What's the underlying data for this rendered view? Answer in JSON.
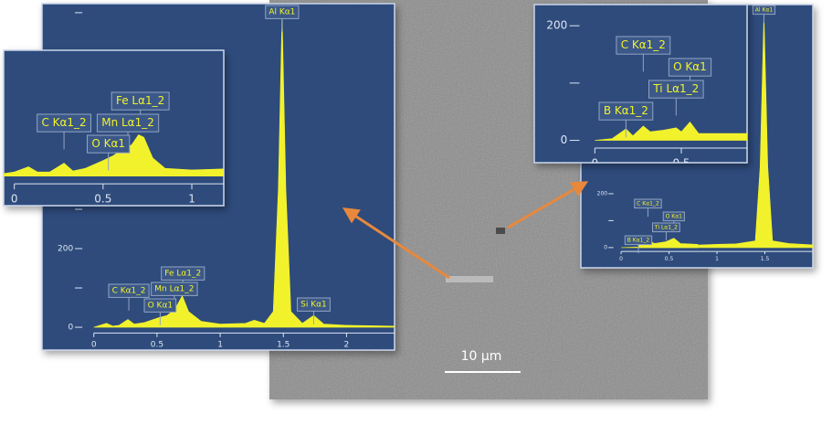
{
  "scale_bar": "10 µm",
  "chart_data": [
    {
      "type": "area",
      "color": "#f2f22c",
      "x": [
        0,
        0.1,
        0.15,
        0.2,
        0.27,
        0.32,
        0.4,
        0.52,
        0.58,
        0.64,
        0.7,
        0.75,
        0.85,
        1.0,
        1.2,
        1.27,
        1.35,
        1.42,
        1.46,
        1.49,
        1.52,
        1.56,
        1.65,
        1.74,
        1.82,
        2.0,
        2.38
      ],
      "values": [
        0,
        10,
        3,
        5,
        20,
        8,
        12,
        25,
        30,
        45,
        80,
        40,
        15,
        8,
        10,
        18,
        10,
        40,
        350,
        800,
        350,
        40,
        10,
        30,
        8,
        5,
        3
      ],
      "xlim": [
        -0.41,
        2.38
      ],
      "ylim": [
        -58,
        823
      ],
      "xticks": [
        0,
        0.5,
        1,
        1.5,
        2
      ],
      "yticks": [
        0,
        200
      ],
      "y_minor_ticks": [
        100,
        300,
        400,
        500,
        600,
        700,
        800
      ],
      "annotations": [
        {
          "label": "Al Kα1",
          "x": 1.49
        },
        {
          "label": "Fe Lα1_2",
          "x": 0.705
        },
        {
          "label": "Mn Lα1_2",
          "x": 0.637
        },
        {
          "label": "C Kα1_2",
          "x": 0.277
        },
        {
          "label": "O Kα1",
          "x": 0.525
        },
        {
          "label": "Si Kα1",
          "x": 1.74
        }
      ]
    },
    {
      "type": "area",
      "color": "#f2f22c",
      "x": [
        -0.06,
        0,
        0.08,
        0.13,
        0.2,
        0.28,
        0.33,
        0.4,
        0.5,
        0.56,
        0.62,
        0.66,
        0.7,
        0.73,
        0.78,
        0.85,
        1.0,
        1.18
      ],
      "values": [
        5,
        8,
        18,
        8,
        8,
        25,
        10,
        15,
        30,
        40,
        55,
        60,
        80,
        75,
        35,
        15,
        12,
        14
      ],
      "xlim": [
        -0.06,
        1.18
      ],
      "ylim": [
        -57,
        243
      ],
      "xticks": [
        0,
        0.5,
        1
      ],
      "yticks": [],
      "y_minor_ticks": [],
      "annotations": [
        {
          "label": "Fe Lα1_2",
          "x": 0.71
        },
        {
          "label": "C Kα1_2",
          "x": 0.28
        },
        {
          "label": "Mn Lα1_2",
          "x": 0.64
        },
        {
          "label": "O Kα1",
          "x": 0.53
        }
      ]
    },
    {
      "type": "area",
      "color": "#f2f22c",
      "x": [
        0,
        1.0,
        1.2,
        1.4,
        1.45,
        1.49,
        1.53,
        1.58,
        1.75,
        2.0
      ],
      "values": [
        0,
        12,
        14,
        25,
        300,
        870,
        300,
        25,
        15,
        10
      ],
      "pre_x": [
        0.18,
        0.22,
        0.28,
        0.35,
        0.47,
        0.55,
        0.62,
        0.8
      ],
      "pre_values": [
        20,
        10,
        28,
        15,
        22,
        35,
        15,
        12
      ],
      "xlim": [
        -0.42,
        2.0
      ],
      "ylim": [
        -75,
        902
      ],
      "xticks": [
        0,
        0.5,
        1,
        1.5
      ],
      "yticks": [
        0,
        200
      ],
      "y_minor_ticks": [
        100
      ],
      "annotations": [
        {
          "label": "Al Kα1",
          "x": 1.49
        },
        {
          "label": "C Kα1_2",
          "x": 0.28
        },
        {
          "label": "O Kα1",
          "x": 0.55
        },
        {
          "label": "Ti Lα1_2",
          "x": 0.47
        },
        {
          "label": "B Kα1_2",
          "x": 0.18
        }
      ]
    },
    {
      "type": "area",
      "color": "#f2f22c",
      "x": [
        0,
        0.1,
        0.18,
        0.22,
        0.28,
        0.32,
        0.4,
        0.47,
        0.5,
        0.55,
        0.6,
        0.7,
        0.88
      ],
      "values": [
        0,
        3,
        20,
        8,
        25,
        15,
        18,
        22,
        15,
        32,
        12,
        12,
        12
      ],
      "xlim": [
        -0.35,
        0.88
      ],
      "ylim": [
        -39,
        237
      ],
      "xticks": [
        0,
        0.5
      ],
      "yticks": [
        0,
        200
      ],
      "y_minor_ticks": [
        100
      ],
      "annotations": [
        {
          "label": "C Kα1_2",
          "x": 0.28
        },
        {
          "label": "O Kα1",
          "x": 0.55
        },
        {
          "label": "Ti Lα1_2",
          "x": 0.47
        },
        {
          "label": "B Kα1_2",
          "x": 0.18
        }
      ]
    }
  ]
}
